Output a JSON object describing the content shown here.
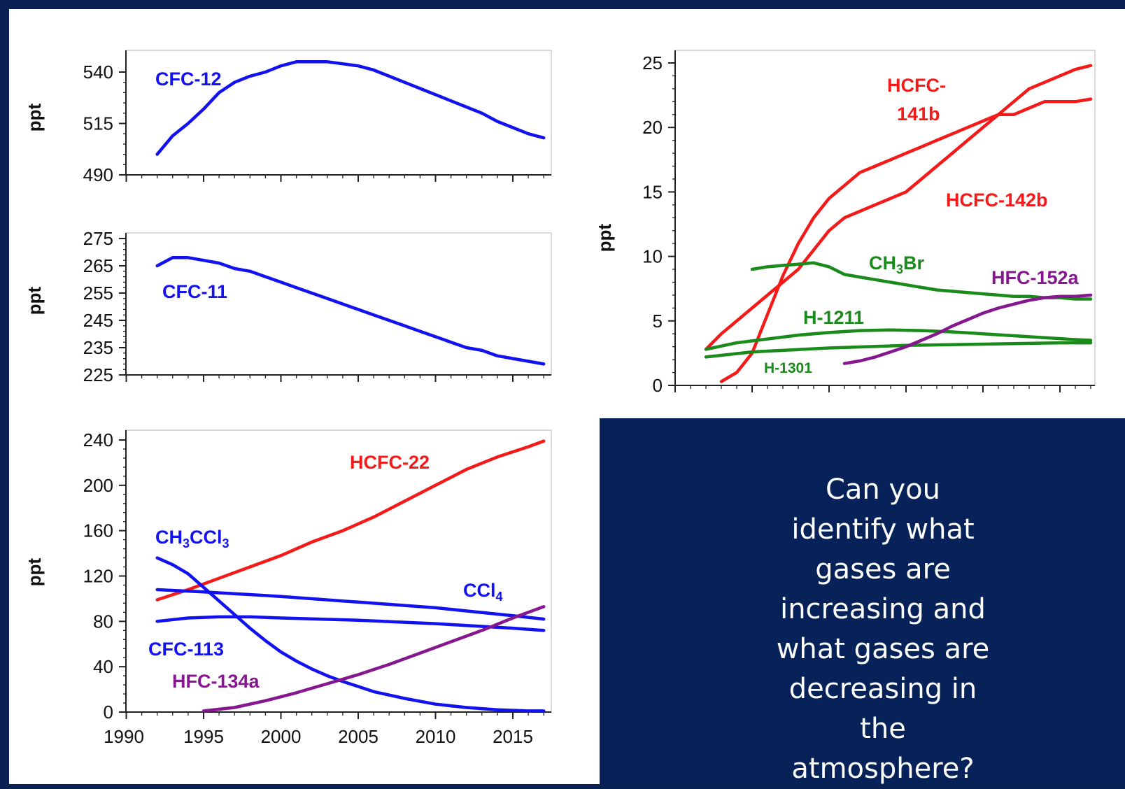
{
  "colors": {
    "background": "#0a2154",
    "panel": "#062259",
    "cfc_blue": "#1212f0",
    "hcfc_red": "#f41a1a",
    "halon_green": "#1a8a1a",
    "hfc_purple": "#85178f"
  },
  "question": {
    "lines": [
      "Can you",
      "identify what",
      "gases are",
      "increasing and",
      "what gases are",
      "decreasing in",
      "the",
      "atmosphere?"
    ]
  },
  "chart_data": [
    {
      "type": "line",
      "ylabel": "ppt",
      "xlim": [
        1990,
        2018
      ],
      "ylim": [
        490,
        545
      ],
      "yticks": [
        490,
        515,
        540
      ],
      "series": [
        {
          "name": "CFC-12",
          "color": "#1212f0",
          "x": [
            1992,
            1993,
            1994,
            1995,
            1996,
            1997,
            1998,
            1999,
            2000,
            2001,
            2002,
            2003,
            2004,
            2005,
            2006,
            2007,
            2008,
            2009,
            2010,
            2011,
            2012,
            2013,
            2014,
            2015,
            2016,
            2017
          ],
          "y": [
            500,
            509,
            515,
            522,
            530,
            535,
            538,
            540,
            543,
            545,
            545,
            545,
            544,
            543,
            541,
            538,
            535,
            532,
            529,
            526,
            523,
            520,
            516,
            513,
            510,
            508
          ]
        }
      ]
    },
    {
      "type": "line",
      "ylabel": "ppt",
      "xlim": [
        1990,
        2018
      ],
      "ylim": [
        225,
        275
      ],
      "yticks": [
        225,
        235,
        245,
        255,
        265,
        275
      ],
      "series": [
        {
          "name": "CFC-11",
          "color": "#1212f0",
          "x": [
            1992,
            1993,
            1994,
            1995,
            1996,
            1997,
            1998,
            1999,
            2000,
            2001,
            2002,
            2003,
            2004,
            2005,
            2006,
            2007,
            2008,
            2009,
            2010,
            2011,
            2012,
            2013,
            2014,
            2015,
            2016,
            2017
          ],
          "y": [
            265,
            268,
            268,
            267,
            266,
            264,
            263,
            261,
            259,
            257,
            255,
            253,
            251,
            249,
            247,
            245,
            243,
            241,
            239,
            237,
            235,
            234,
            232,
            231,
            230,
            229
          ]
        }
      ]
    },
    {
      "type": "line",
      "ylabel": "ppt",
      "xlim": [
        1990,
        2018
      ],
      "ylim": [
        0,
        245
      ],
      "yticks": [
        0,
        40,
        80,
        120,
        160,
        200,
        240
      ],
      "xticks": [
        1990,
        1995,
        2000,
        2005,
        2010,
        2015
      ],
      "series": [
        {
          "name": "HCFC-22",
          "color": "#f41a1a",
          "x": [
            1992,
            1994,
            1996,
            1998,
            2000,
            2002,
            2004,
            2006,
            2008,
            2010,
            2012,
            2014,
            2016,
            2017
          ],
          "y": [
            99,
            108,
            118,
            128,
            138,
            150,
            160,
            172,
            186,
            200,
            214,
            225,
            234,
            239
          ]
        },
        {
          "name": "CH3CCl3",
          "color": "#1212f0",
          "x": [
            1992,
            1993,
            1994,
            1995,
            1996,
            1997,
            1998,
            1999,
            2000,
            2001,
            2002,
            2003,
            2004,
            2006,
            2008,
            2010,
            2012,
            2014,
            2016,
            2017
          ],
          "y": [
            136,
            130,
            122,
            110,
            98,
            86,
            74,
            63,
            53,
            45,
            38,
            32,
            27,
            18,
            12,
            7,
            4,
            2,
            1,
            1
          ]
        },
        {
          "name": "CCl4",
          "color": "#1212f0",
          "x": [
            1992,
            1995,
            2000,
            2005,
            2010,
            2015,
            2017
          ],
          "y": [
            108,
            106,
            102,
            97,
            92,
            85,
            82
          ]
        },
        {
          "name": "CFC-113",
          "color": "#1212f0",
          "x": [
            1992,
            1994,
            1996,
            1998,
            2000,
            2005,
            2010,
            2015,
            2017
          ],
          "y": [
            80,
            83,
            84,
            84,
            83,
            81,
            78,
            74,
            72
          ]
        },
        {
          "name": "HFC-134a",
          "color": "#85178f",
          "x": [
            1995,
            1997,
            1999,
            2001,
            2003,
            2005,
            2007,
            2009,
            2011,
            2013,
            2015,
            2017
          ],
          "y": [
            1,
            4,
            10,
            17,
            25,
            33,
            42,
            52,
            62,
            72,
            83,
            93
          ]
        }
      ],
      "annotations": [
        "HCFC-22",
        "CH3CCl3",
        "CCl4",
        "CFC-113",
        "HFC-134a"
      ]
    },
    {
      "type": "line",
      "ylabel": "ppt",
      "xlim": [
        1990,
        2018
      ],
      "ylim": [
        0,
        26
      ],
      "yticks": [
        0,
        5,
        10,
        15,
        20,
        25
      ],
      "series": [
        {
          "name": "HCFC-141b",
          "color": "#f41a1a",
          "x": [
            1993,
            1994,
            1995,
            1996,
            1997,
            1998,
            1999,
            2000,
            2001,
            2002,
            2003,
            2004,
            2005,
            2006,
            2007,
            2008,
            2009,
            2010,
            2011,
            2012,
            2013,
            2014,
            2015,
            2016,
            2017
          ],
          "y": [
            0.3,
            1,
            2.5,
            5.5,
            8.5,
            11,
            13,
            14.5,
            15.5,
            16.5,
            17,
            17.5,
            18,
            18.5,
            19,
            19.5,
            20,
            20.5,
            21,
            21,
            21.5,
            22,
            22,
            22,
            22.2
          ]
        },
        {
          "name": "HCFC-142b",
          "color": "#f41a1a",
          "x": [
            1992,
            1993,
            1994,
            1995,
            1996,
            1997,
            1998,
            1999,
            2000,
            2001,
            2002,
            2003,
            2004,
            2005,
            2006,
            2007,
            2008,
            2009,
            2010,
            2011,
            2012,
            2013,
            2014,
            2015,
            2016,
            2017
          ],
          "y": [
            2.8,
            4,
            5,
            6,
            7,
            8,
            9,
            10.5,
            12,
            13,
            13.5,
            14,
            14.5,
            15,
            16,
            17,
            18,
            19,
            20,
            21,
            22,
            23,
            23.5,
            24,
            24.5,
            24.8
          ]
        },
        {
          "name": "CH3Br",
          "color": "#1a8a1a",
          "x": [
            1995,
            1996,
            1997,
            1998,
            1999,
            2000,
            2001,
            2002,
            2003,
            2004,
            2005,
            2006,
            2007,
            2008,
            2009,
            2010,
            2011,
            2012,
            2013,
            2014,
            2015,
            2016,
            2017
          ],
          "y": [
            9,
            9.2,
            9.3,
            9.4,
            9.5,
            9.2,
            8.6,
            8.4,
            8.2,
            8.0,
            7.8,
            7.6,
            7.4,
            7.3,
            7.2,
            7.1,
            7.0,
            6.9,
            6.9,
            6.8,
            6.8,
            6.7,
            6.7
          ]
        },
        {
          "name": "H-1211",
          "color": "#1a8a1a",
          "x": [
            1992,
            1994,
            1996,
            1998,
            2000,
            2002,
            2004,
            2006,
            2008,
            2010,
            2012,
            2014,
            2016,
            2017
          ],
          "y": [
            2.8,
            3.3,
            3.6,
            3.9,
            4.1,
            4.25,
            4.3,
            4.25,
            4.15,
            4.0,
            3.85,
            3.7,
            3.55,
            3.5
          ]
        },
        {
          "name": "H-1301",
          "color": "#1a8a1a",
          "x": [
            1992,
            1995,
            2000,
            2005,
            2010,
            2015,
            2017
          ],
          "y": [
            2.2,
            2.6,
            2.9,
            3.1,
            3.2,
            3.3,
            3.3
          ]
        },
        {
          "name": "HFC-152a",
          "color": "#85178f",
          "x": [
            2001,
            2002,
            2003,
            2004,
            2005,
            2006,
            2007,
            2008,
            2009,
            2010,
            2011,
            2012,
            2013,
            2014,
            2015,
            2016,
            2017
          ],
          "y": [
            1.7,
            1.9,
            2.2,
            2.6,
            3.0,
            3.5,
            4.0,
            4.6,
            5.1,
            5.6,
            6.0,
            6.3,
            6.6,
            6.8,
            6.9,
            6.9,
            7.0
          ]
        }
      ],
      "annotations": [
        "HCFC-",
        "141b",
        "HCFC-142b",
        "CH3Br",
        "HFC-152a",
        "H-1211",
        "H-1301"
      ]
    }
  ]
}
